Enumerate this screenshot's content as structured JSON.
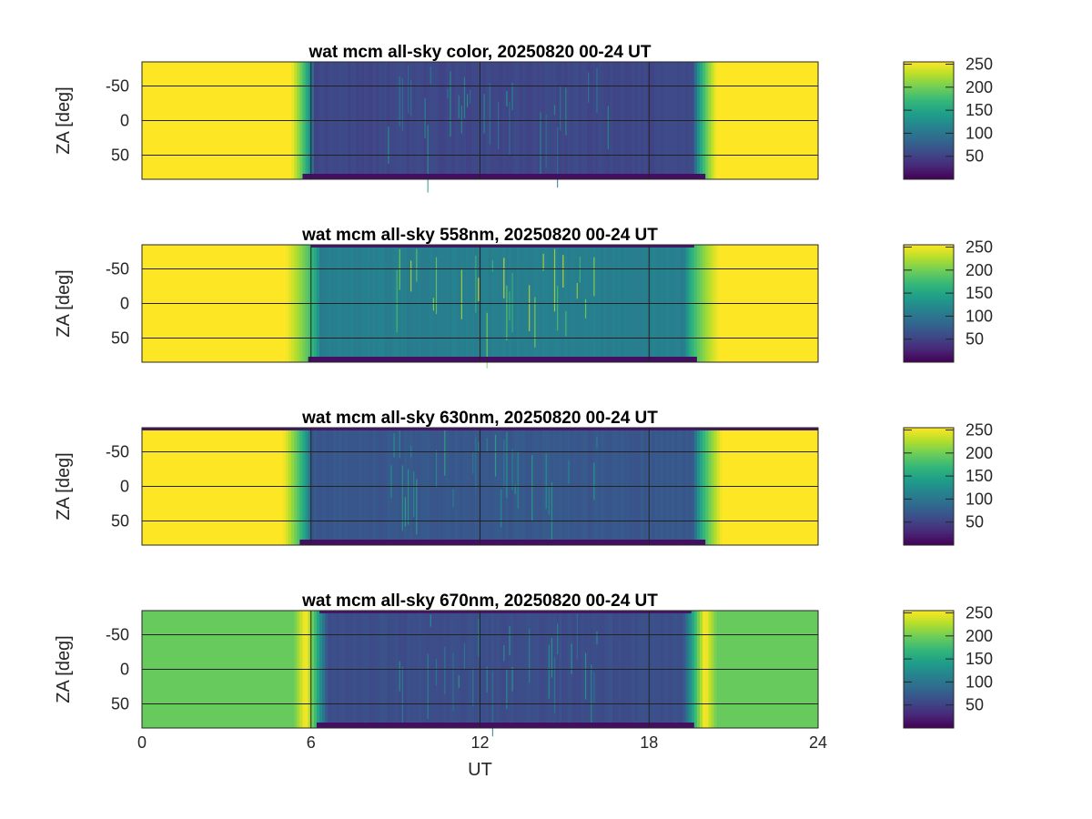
{
  "chart_data": [
    {
      "type": "heatmap",
      "title": "wat mcm all-sky color, 20250820 00-24 UT",
      "xlabel": "",
      "ylabel": "ZA [deg]",
      "xlim": [
        0,
        24
      ],
      "ylim": [
        -85,
        85
      ],
      "xticks": [
        0,
        6,
        12,
        18,
        24
      ],
      "yticks": [
        -50,
        0,
        50
      ],
      "ytick_labels": [
        "-50",
        "0",
        "50"
      ],
      "grid": true,
      "colormap": "viridis",
      "clim": [
        0,
        255
      ],
      "colorbar_ticks": [
        50,
        100,
        150,
        200,
        250
      ],
      "colorbar_labels": [
        "50",
        "100",
        "150",
        "200",
        "250"
      ],
      "day_value": 255,
      "night_value": 55,
      "night_start_ut": 6.1,
      "night_end_ut": 19.6,
      "twilight_width_h": 0.8
    },
    {
      "type": "heatmap",
      "title": "wat mcm all-sky 558nm, 20250820 00-24 UT",
      "xlabel": "",
      "ylabel": "ZA [deg]",
      "xlim": [
        0,
        24
      ],
      "ylim": [
        -85,
        85
      ],
      "xticks": [
        0,
        6,
        12,
        18,
        24
      ],
      "yticks": [
        -50,
        0,
        50
      ],
      "ytick_labels": [
        "-50",
        "0",
        "50"
      ],
      "grid": true,
      "colormap": "viridis",
      "clim": [
        0,
        255
      ],
      "colorbar_ticks": [
        50,
        100,
        150,
        200,
        250
      ],
      "colorbar_labels": [
        "50",
        "100",
        "150",
        "200",
        "250"
      ],
      "day_value": 255,
      "night_value": 110,
      "night_start_ut": 6.3,
      "night_end_ut": 19.3,
      "twilight_width_h": 1.2
    },
    {
      "type": "heatmap",
      "title": "wat mcm all-sky 630nm, 20250820 00-24 UT",
      "xlabel": "",
      "ylabel": "ZA [deg]",
      "xlim": [
        0,
        24
      ],
      "ylim": [
        -85,
        85
      ],
      "xticks": [
        0,
        6,
        12,
        18,
        24
      ],
      "yticks": [
        -50,
        0,
        50
      ],
      "ytick_labels": [
        "-50",
        "0",
        "50"
      ],
      "grid": true,
      "colormap": "viridis",
      "clim": [
        0,
        255
      ],
      "colorbar_ticks": [
        50,
        100,
        150,
        200,
        250
      ],
      "colorbar_labels": [
        "50",
        "100",
        "150",
        "200",
        "250"
      ],
      "day_value": 255,
      "night_value": 70,
      "night_start_ut": 6.0,
      "night_end_ut": 19.6,
      "twilight_width_h": 1.0
    },
    {
      "type": "heatmap",
      "title": "wat mcm all-sky 670nm, 20250820 00-24 UT",
      "xlabel": "UT",
      "ylabel": "ZA [deg]",
      "xlim": [
        0,
        24
      ],
      "ylim": [
        -85,
        85
      ],
      "xticks": [
        0,
        6,
        12,
        18,
        24
      ],
      "xtick_labels": [
        "0",
        "6",
        "12",
        "18",
        "24"
      ],
      "yticks": [
        -50,
        0,
        50
      ],
      "ytick_labels": [
        "-50",
        "0",
        "50"
      ],
      "grid": true,
      "colormap": "viridis",
      "clim": [
        0,
        255
      ],
      "colorbar_ticks": [
        50,
        100,
        150,
        200,
        250
      ],
      "colorbar_labels": [
        "50",
        "100",
        "150",
        "200",
        "250"
      ],
      "day_value": 195,
      "night_value": 60,
      "night_start_ut": 6.6,
      "night_end_ut": 19.2,
      "twilight_width_h": 1.2
    }
  ]
}
